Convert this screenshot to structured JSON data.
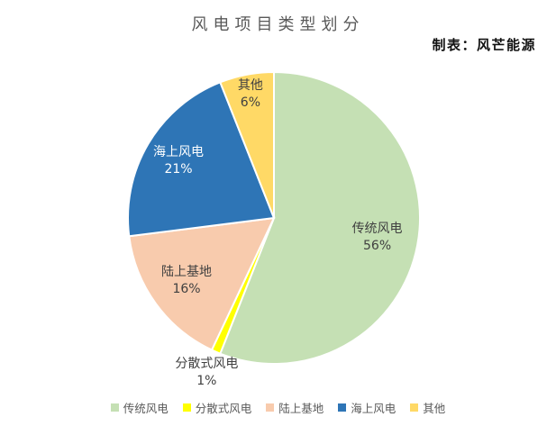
{
  "header": {
    "title": "风电项目类型划分",
    "credit": "制表：风芒能源"
  },
  "chart_data": {
    "type": "pie",
    "title": "风电项目类型划分",
    "source_note": "制表：风芒能源",
    "direction": "clockwise",
    "start_angle_deg": 0,
    "legend_position": "bottom",
    "data_label_format": "category name + percent",
    "slices": [
      {
        "label": "传统风电",
        "value": 56,
        "percent_label": "56%",
        "color": "#C5E0B4",
        "label_color": "#404040",
        "label_inside": true
      },
      {
        "label": "分散式风电",
        "value": 1,
        "percent_label": "1%",
        "color": "#FFFF00",
        "label_color": "#404040",
        "label_inside": false
      },
      {
        "label": "陆上基地",
        "value": 16,
        "percent_label": "16%",
        "color": "#F8CBAD",
        "label_color": "#404040",
        "label_inside": true
      },
      {
        "label": "海上风电",
        "value": 21,
        "percent_label": "21%",
        "color": "#2E75B6",
        "label_color": "#FFFFFF",
        "label_inside": true
      },
      {
        "label": "其他",
        "value": 6,
        "percent_label": "6%",
        "color": "#FFD966",
        "label_color": "#404040",
        "label_inside": true
      }
    ],
    "colors": {
      "title_text": "#595959",
      "credit_text": "#111111",
      "legend_text": "#595959",
      "slice_border": "#FFFFFF"
    }
  }
}
